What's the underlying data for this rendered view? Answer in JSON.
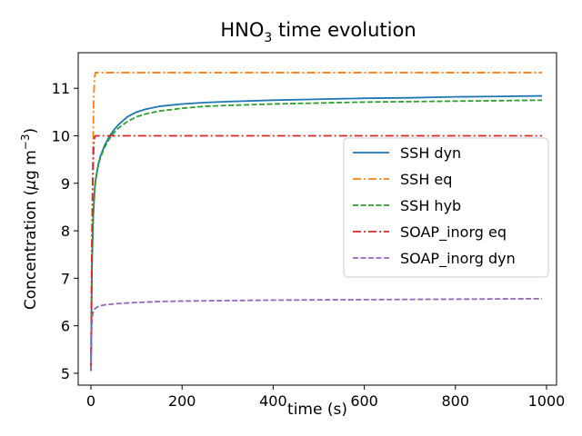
{
  "chart_data": {
    "type": "line",
    "title": {
      "main": "HNO",
      "sub": "3",
      "rest": " time evolution"
    },
    "xlabel": "time (s)",
    "ylabel": {
      "prefix": "Concentration (",
      "mu": "μ",
      "unit": "g m",
      "exp": "−3",
      "suffix": ")"
    },
    "xlim": [
      -28,
      1022
    ],
    "ylim": [
      4.75,
      11.75
    ],
    "xticks": [
      0,
      200,
      400,
      600,
      800,
      1000
    ],
    "yticks": [
      5,
      6,
      7,
      8,
      9,
      10,
      11
    ],
    "grid": false,
    "legend_position": "center-right",
    "series": [
      {
        "name": "SSH dyn",
        "color": "#1f77b4",
        "dash": "solid",
        "x": [
          0,
          2,
          5,
          8,
          10,
          15,
          20,
          30,
          40,
          50,
          60,
          80,
          100,
          120,
          150,
          200,
          250,
          300,
          400,
          500,
          600,
          700,
          800,
          900,
          990
        ],
        "y": [
          5.05,
          7.2,
          8.3,
          8.85,
          9.05,
          9.35,
          9.55,
          9.8,
          9.98,
          10.12,
          10.23,
          10.4,
          10.5,
          10.56,
          10.62,
          10.67,
          10.7,
          10.72,
          10.75,
          10.77,
          10.79,
          10.8,
          10.82,
          10.83,
          10.84
        ]
      },
      {
        "name": "SSH eq",
        "color": "#ff7f0e",
        "dash": "dashdot",
        "x": [
          0,
          2,
          4,
          6,
          8,
          10,
          990
        ],
        "y": [
          5.05,
          7.4,
          9.4,
          10.8,
          11.25,
          11.33,
          11.33
        ]
      },
      {
        "name": "SSH hyb",
        "color": "#2ca02c",
        "dash": "dashed",
        "x": [
          0,
          2,
          5,
          8,
          10,
          15,
          20,
          30,
          40,
          50,
          60,
          80,
          100,
          120,
          150,
          200,
          250,
          300,
          400,
          500,
          600,
          700,
          800,
          900,
          990
        ],
        "y": [
          5.05,
          7.2,
          8.3,
          8.85,
          9.05,
          9.33,
          9.52,
          9.76,
          9.93,
          10.06,
          10.16,
          10.3,
          10.4,
          10.46,
          10.52,
          10.58,
          10.62,
          10.64,
          10.67,
          10.69,
          10.71,
          10.72,
          10.73,
          10.74,
          10.75
        ]
      },
      {
        "name": "SOAP_inorg eq",
        "color": "#d62728",
        "dash": "dashdot",
        "x": [
          0,
          2,
          4,
          6,
          8,
          10,
          990
        ],
        "y": [
          5.05,
          7.8,
          9.1,
          9.8,
          9.98,
          10.0,
          10.0
        ]
      },
      {
        "name": "SOAP_inorg dyn",
        "color": "#9467bd",
        "dash": "dashed",
        "x": [
          0,
          1,
          2,
          3,
          5,
          8,
          10,
          15,
          20,
          30,
          50,
          80,
          100,
          150,
          200,
          300,
          400,
          600,
          800,
          990
        ],
        "y": [
          5.05,
          5.7,
          6.05,
          6.2,
          6.3,
          6.35,
          6.37,
          6.4,
          6.42,
          6.44,
          6.46,
          6.48,
          6.49,
          6.51,
          6.52,
          6.53,
          6.54,
          6.55,
          6.56,
          6.57
        ]
      }
    ]
  }
}
